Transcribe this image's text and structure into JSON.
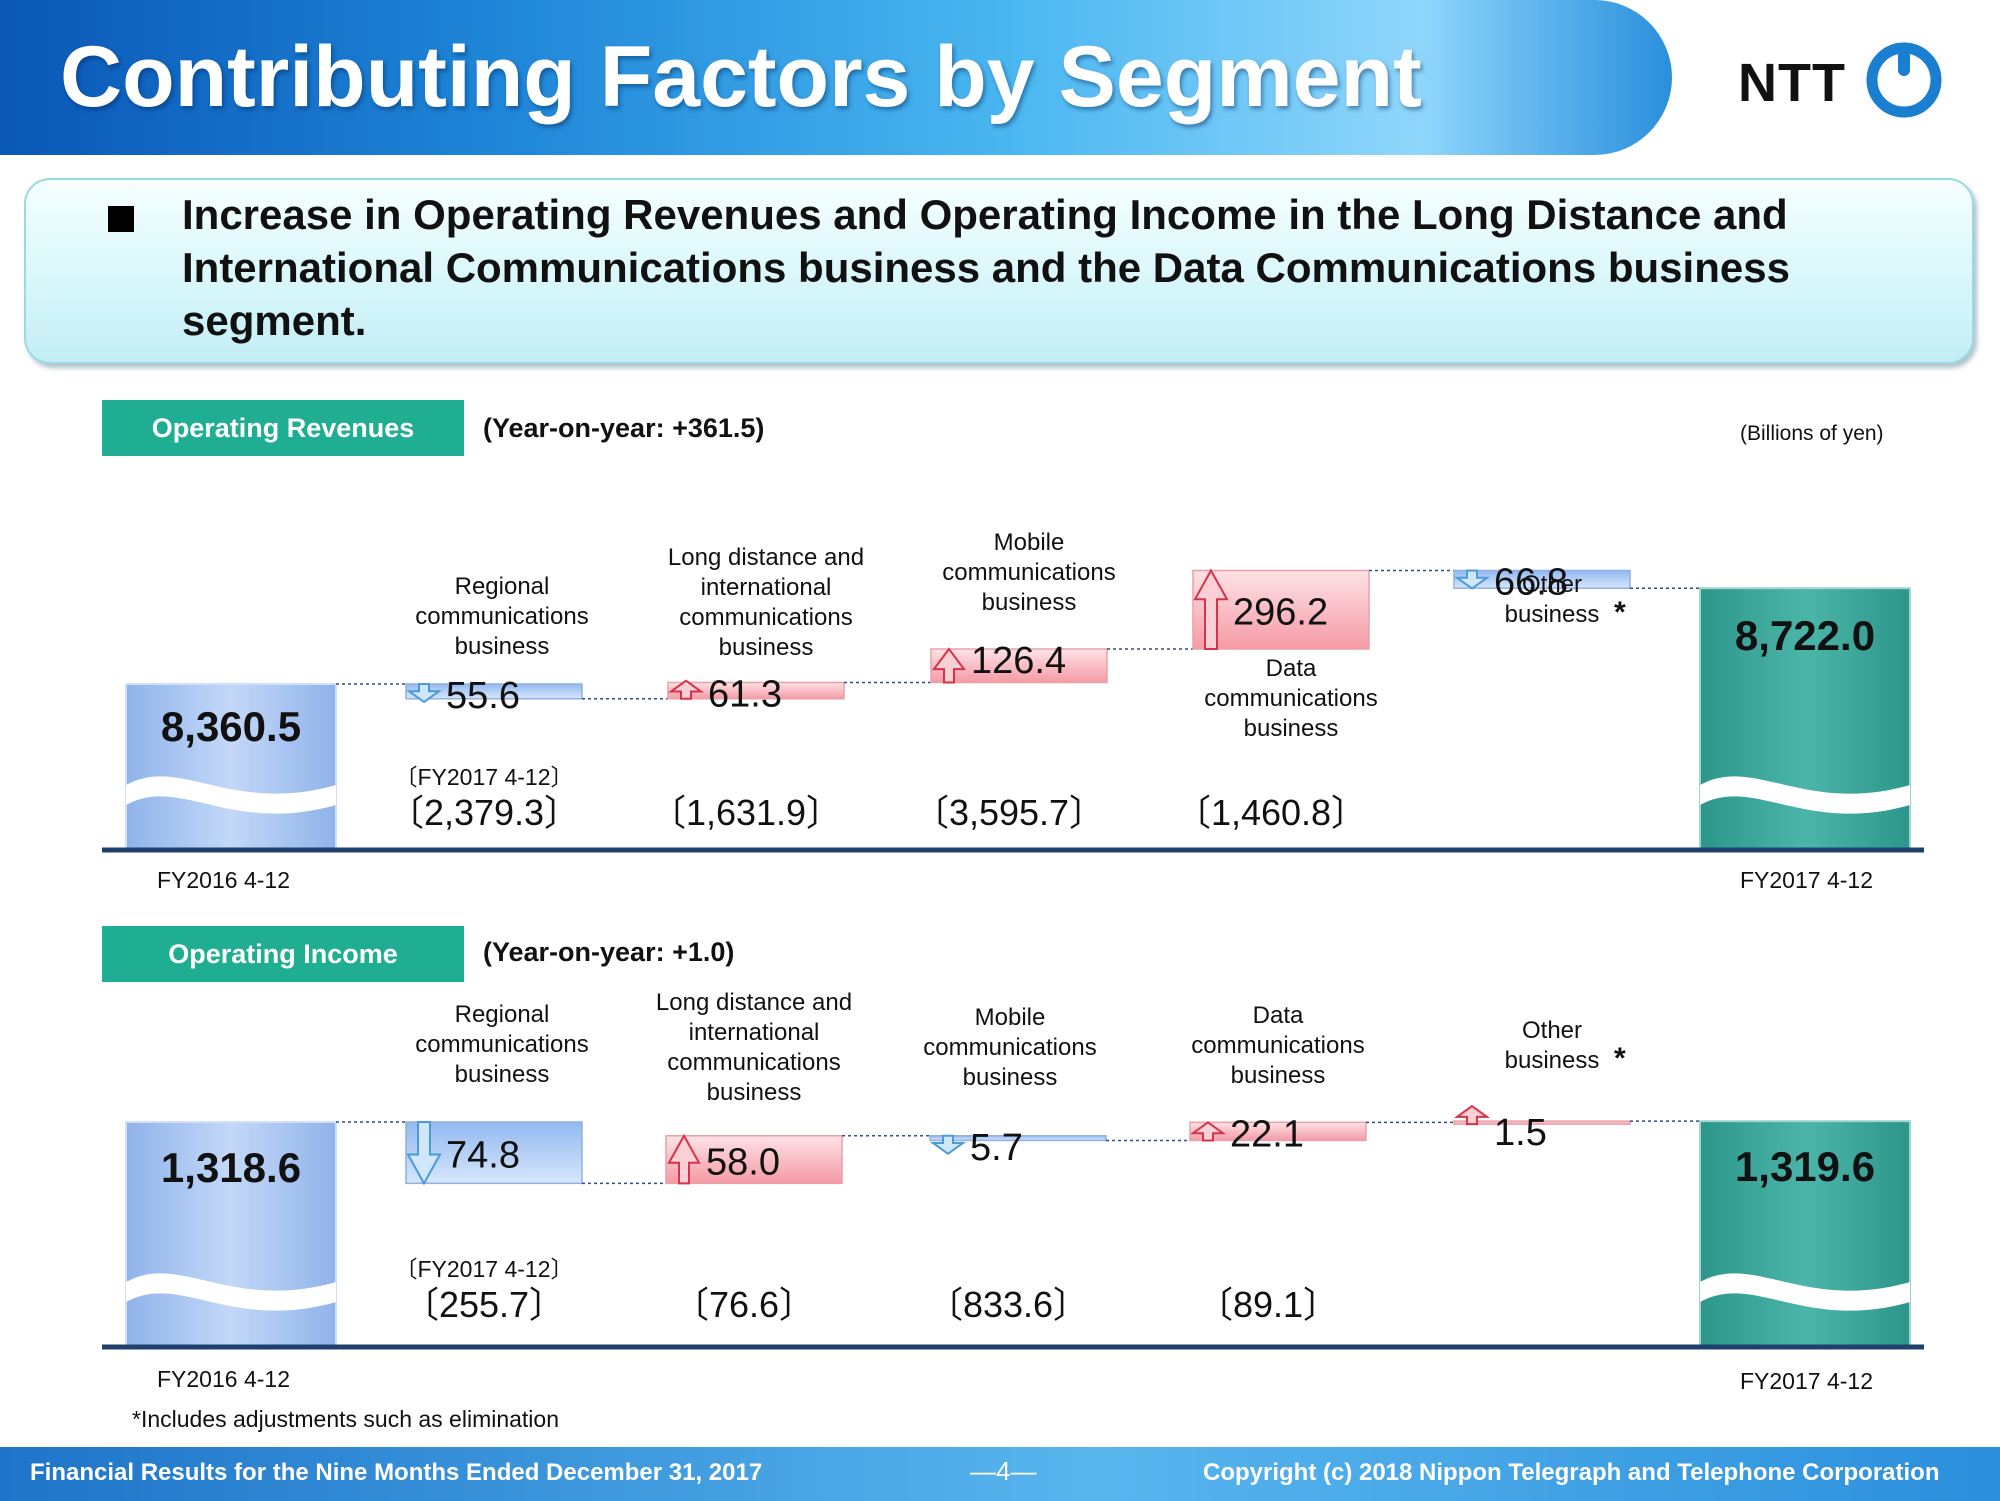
{
  "header": {
    "title": "Contributing Factors by Segment",
    "logo_text": "NTT"
  },
  "summary": {
    "text": "Increase in Operating Revenues and Operating Income in the Long Distance and International Communications business and the Data Communications business segment."
  },
  "unit_label": "(Billions of yen)",
  "footnote": "*Includes adjustments such as elimination",
  "footer": {
    "left": "Financial Results for the Nine Months Ended December 31, 2017",
    "page": "―4―",
    "right": "Copyright (c) 2018  Nippon Telegraph and Telephone Corporation"
  },
  "colors": {
    "start_bar": "#a9c6f4",
    "end_bar": "#3ea89c",
    "increase": "#f9b8bf",
    "decrease": "#a8c8f4",
    "axis": "#1f3f6e"
  },
  "chart_data": [
    {
      "type": "waterfall",
      "section_label": "Operating Revenues",
      "yoy_label": "(Year-on-year: +361.5)",
      "start": {
        "label": "FY2016 4-12",
        "value": 8360.5,
        "value_text": "8,360.5"
      },
      "end": {
        "label": "FY2017 4-12",
        "value": 8722.0,
        "value_text": "8,722.0"
      },
      "bracket_header": "〔FY2017 4-12〕",
      "steps": [
        {
          "name_lines": [
            "Regional",
            "communications",
            "business"
          ],
          "direction": "down",
          "delta": -55.6,
          "delta_text": "55.6",
          "segment_total_text": "〔2,379.3〕"
        },
        {
          "name_lines": [
            "Long distance and",
            "international",
            "communications",
            "business"
          ],
          "direction": "up",
          "delta": 61.3,
          "delta_text": "61.3",
          "segment_total_text": "〔1,631.9〕"
        },
        {
          "name_lines": [
            "Mobile",
            "communications",
            "business"
          ],
          "direction": "up",
          "delta": 126.4,
          "delta_text": "126.4",
          "segment_total_text": "〔3,595.7〕"
        },
        {
          "name_lines": [
            "Data",
            "communications",
            "business"
          ],
          "direction": "up",
          "delta": 296.2,
          "delta_text": "296.2",
          "segment_total_text": "〔1,460.8〕"
        },
        {
          "name_lines": [
            "Other",
            "business"
          ],
          "asterisk": "*",
          "direction": "down",
          "delta": -66.8,
          "delta_text": "66.8",
          "segment_total_text": ""
        }
      ]
    },
    {
      "type": "waterfall",
      "section_label": "Operating Income",
      "yoy_label": "(Year-on-year: +1.0)",
      "start": {
        "label": "FY2016 4-12",
        "value": 1318.6,
        "value_text": "1,318.6"
      },
      "end": {
        "label": "FY2017 4-12",
        "value": 1319.6,
        "value_text": "1,319.6"
      },
      "bracket_header": "〔FY2017 4-12〕",
      "steps": [
        {
          "name_lines": [
            "Regional",
            "communications",
            "business"
          ],
          "direction": "down",
          "delta": -74.8,
          "delta_text": "74.8",
          "segment_total_text": "〔255.7〕"
        },
        {
          "name_lines": [
            "Long distance and",
            "international",
            "communications",
            "business"
          ],
          "direction": "up",
          "delta": 58.0,
          "delta_text": "58.0",
          "segment_total_text": "〔76.6〕"
        },
        {
          "name_lines": [
            "Mobile",
            "communications",
            "business"
          ],
          "direction": "down",
          "delta": -5.7,
          "delta_text": "5.7",
          "segment_total_text": "〔833.6〕"
        },
        {
          "name_lines": [
            "Data",
            "communications",
            "business"
          ],
          "direction": "up",
          "delta": 22.1,
          "delta_text": "22.1",
          "segment_total_text": "〔89.1〕"
        },
        {
          "name_lines": [
            "Other",
            "business"
          ],
          "asterisk": "*",
          "direction": "up",
          "delta": 1.5,
          "delta_text": "1.5",
          "segment_total_text": ""
        }
      ]
    }
  ]
}
